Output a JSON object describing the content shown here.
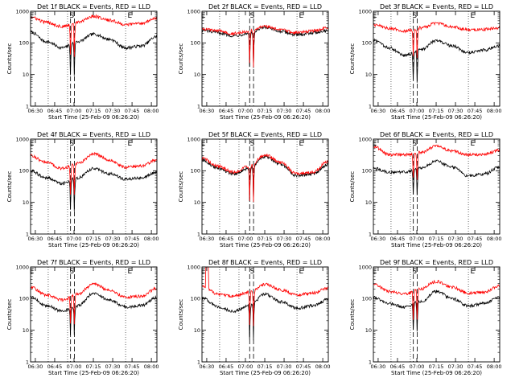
{
  "colors": {
    "events": "#000000",
    "lld": "#ff0000",
    "axis": "#000000"
  },
  "figure": {
    "ylabel": "Counts/sec",
    "xlabel": "Start Time (25-Feb-09 06:26:20)",
    "xticks": [
      "06:30",
      "06:45",
      "07:00",
      "07:15",
      "07:30",
      "07:45",
      "08:00"
    ],
    "yticks": [
      "1",
      "10",
      "100",
      "1000"
    ],
    "markers": {
      "E": "E",
      "S": "S"
    }
  },
  "chart_data": [
    {
      "type": "line",
      "title": "Det 1f BLACK = Events, RED = LLD",
      "yscale": "log",
      "ylim": [
        1,
        1000
      ],
      "xlim_min": [
        0,
        98
      ],
      "series": [
        {
          "name": "Events",
          "color": "#000000",
          "base": [
            220,
            110,
            70,
            110,
            190,
            130,
            70,
            80,
            160
          ]
        },
        {
          "name": "LLD",
          "color": "#ff0000",
          "base": [
            650,
            450,
            330,
            450,
            700,
            520,
            380,
            420,
            600
          ]
        }
      ],
      "dip_min": [
        31,
        34
      ],
      "dip_depth": [
        0.01,
        0.006
      ],
      "markers_min": [
        1,
        32,
        77
      ]
    },
    {
      "type": "line",
      "title": "Det 2f BLACK = Events, RED = LLD",
      "yscale": "log",
      "ylim": [
        1,
        1000
      ],
      "xlim_min": [
        0,
        98
      ],
      "series": [
        {
          "name": "Events",
          "color": "#000000",
          "base": [
            250,
            210,
            170,
            200,
            300,
            230,
            180,
            210,
            250
          ]
        },
        {
          "name": "LLD",
          "color": "#ff0000",
          "base": [
            280,
            240,
            200,
            240,
            330,
            260,
            210,
            240,
            300
          ]
        }
      ],
      "dip_min": [
        37,
        40
      ],
      "dip_depth": [
        0.03,
        0.02
      ],
      "markers_min": [
        1,
        39,
        77
      ]
    },
    {
      "type": "line",
      "title": "Det 3f BLACK = Events, RED = LLD",
      "yscale": "log",
      "ylim": [
        1,
        1000
      ],
      "xlim_min": [
        0,
        98
      ],
      "series": [
        {
          "name": "Events",
          "color": "#000000",
          "base": [
            120,
            70,
            40,
            60,
            120,
            80,
            50,
            60,
            80
          ]
        },
        {
          "name": "LLD",
          "color": "#ff0000",
          "base": [
            380,
            290,
            240,
            300,
            420,
            320,
            260,
            270,
            300
          ]
        }
      ],
      "dip_min": [
        31,
        34
      ],
      "dip_depth": [
        0.03,
        0.02
      ],
      "markers_min": [
        1,
        32,
        77
      ]
    },
    {
      "type": "line",
      "title": "Det 4f BLACK = Events, RED = LLD",
      "yscale": "log",
      "ylim": [
        1,
        1000
      ],
      "xlim_min": [
        0,
        98
      ],
      "series": [
        {
          "name": "Events",
          "color": "#000000",
          "base": [
            100,
            60,
            40,
            60,
            120,
            80,
            55,
            60,
            90
          ]
        },
        {
          "name": "LLD",
          "color": "#ff0000",
          "base": [
            300,
            180,
            120,
            170,
            350,
            220,
            130,
            140,
            220
          ]
        }
      ],
      "dip_min": [
        31,
        34
      ],
      "dip_depth": [
        0.02,
        0.015
      ],
      "markers_min": [
        1,
        32,
        77
      ]
    },
    {
      "type": "line",
      "title": "Det 5f BLACK = Events, RED = LLD",
      "yscale": "log",
      "ylim": [
        1,
        1000
      ],
      "xlim_min": [
        0,
        98
      ],
      "series": [
        {
          "name": "Events",
          "color": "#000000",
          "base": [
            220,
            120,
            80,
            120,
            280,
            160,
            70,
            80,
            160
          ]
        },
        {
          "name": "LLD",
          "color": "#ff0000",
          "base": [
            250,
            140,
            90,
            140,
            320,
            180,
            80,
            90,
            200
          ]
        }
      ],
      "dip_min": [
        37,
        40
      ],
      "dip_depth": [
        0.02,
        0.02
      ],
      "markers_min": [
        1,
        39,
        77
      ]
    },
    {
      "type": "line",
      "title": "Det 6f BLACK = Events, RED = LLD",
      "yscale": "log",
      "ylim": [
        1,
        1000
      ],
      "xlim_min": [
        0,
        98
      ],
      "series": [
        {
          "name": "Events",
          "color": "#000000",
          "base": [
            120,
            90,
            90,
            120,
            200,
            130,
            70,
            80,
            130
          ]
        },
        {
          "name": "LLD",
          "color": "#ff0000",
          "base": [
            600,
            330,
            320,
            380,
            600,
            420,
            320,
            330,
            450
          ]
        }
      ],
      "dip_min": [
        31,
        34
      ],
      "dip_depth": [
        0.06,
        0.05
      ],
      "markers_min": [
        1,
        32,
        77
      ]
    },
    {
      "type": "line",
      "title": "Det 7f BLACK = Events, RED = LLD",
      "yscale": "log",
      "ylim": [
        1,
        1000
      ],
      "xlim_min": [
        0,
        98
      ],
      "series": [
        {
          "name": "Events",
          "color": "#000000",
          "base": [
            110,
            60,
            40,
            60,
            150,
            90,
            55,
            60,
            110
          ]
        },
        {
          "name": "LLD",
          "color": "#ff0000",
          "base": [
            230,
            130,
            90,
            140,
            300,
            180,
            110,
            120,
            210
          ]
        }
      ],
      "dip_min": [
        31,
        34
      ],
      "dip_depth": [
        0.04,
        0.03
      ],
      "markers_min": [
        1,
        32,
        77
      ]
    },
    {
      "type": "line",
      "title": "Det 8f BLACK = Events, RED = LLD",
      "yscale": "log",
      "ylim": [
        1,
        1000
      ],
      "xlim_min": [
        0,
        98
      ],
      "series": [
        {
          "name": "Events",
          "color": "#000000",
          "base": [
            110,
            55,
            40,
            60,
            140,
            80,
            50,
            60,
            90
          ]
        },
        {
          "name": "LLD",
          "color": "#ff0000",
          "base": [
            250,
            140,
            120,
            160,
            280,
            190,
            130,
            150,
            220
          ]
        }
      ],
      "dip_min": [
        37,
        40
      ],
      "dip_depth": [
        0.02,
        0.02
      ],
      "markers_min": [
        1,
        39,
        77
      ],
      "spike_min": [
        3,
        5
      ]
    },
    {
      "type": "line",
      "title": "Det 9f BLACK = Events, RED = LLD",
      "yscale": "log",
      "ylim": [
        1,
        1000
      ],
      "xlim_min": [
        0,
        98
      ],
      "series": [
        {
          "name": "Events",
          "color": "#000000",
          "base": [
            110,
            70,
            55,
            80,
            170,
            100,
            60,
            70,
            110
          ]
        },
        {
          "name": "LLD",
          "color": "#ff0000",
          "base": [
            280,
            170,
            140,
            200,
            350,
            230,
            150,
            160,
            250
          ]
        }
      ],
      "dip_min": [
        31,
        34
      ],
      "dip_depth": [
        0.04,
        0.03
      ],
      "markers_min": [
        1,
        32,
        77
      ]
    }
  ]
}
